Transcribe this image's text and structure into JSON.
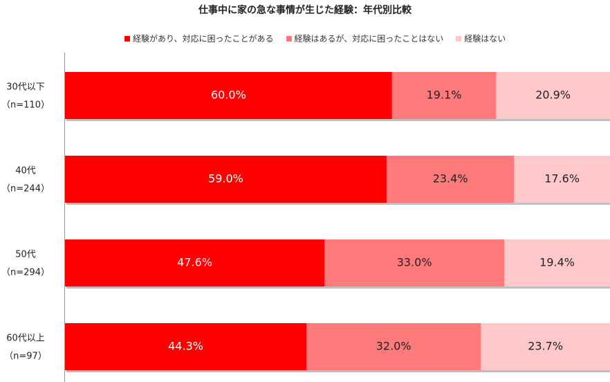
{
  "chart_data": {
    "type": "bar",
    "orientation": "horizontal",
    "stacked": true,
    "title": "仕事中に家の急な事情が生じた経験：年代別比較",
    "categories": [
      "30代以下",
      "40代",
      "50代",
      "60代以上"
    ],
    "category_sub": [
      "（n=110）",
      "（n=244）",
      "（n=294）",
      "（n=97）"
    ],
    "series": [
      {
        "name": "経験があり、対応に困ったことがある",
        "values": [
          60.0,
          59.0,
          47.6,
          44.3
        ],
        "color": "#ff0000",
        "label_color": "#ffffff"
      },
      {
        "name": "経験はあるが、対応に困ったことはない",
        "values": [
          19.1,
          23.4,
          33.0,
          32.0
        ],
        "color": "#ff7a7a",
        "label_color": "#222222"
      },
      {
        "name": "経験はない",
        "values": [
          20.9,
          17.6,
          19.4,
          23.7
        ],
        "color": "#ffc9cc",
        "label_color": "#222222"
      }
    ],
    "xlim": [
      0,
      100
    ],
    "value_suffix": "%",
    "legend_position": "top",
    "grid": false
  }
}
